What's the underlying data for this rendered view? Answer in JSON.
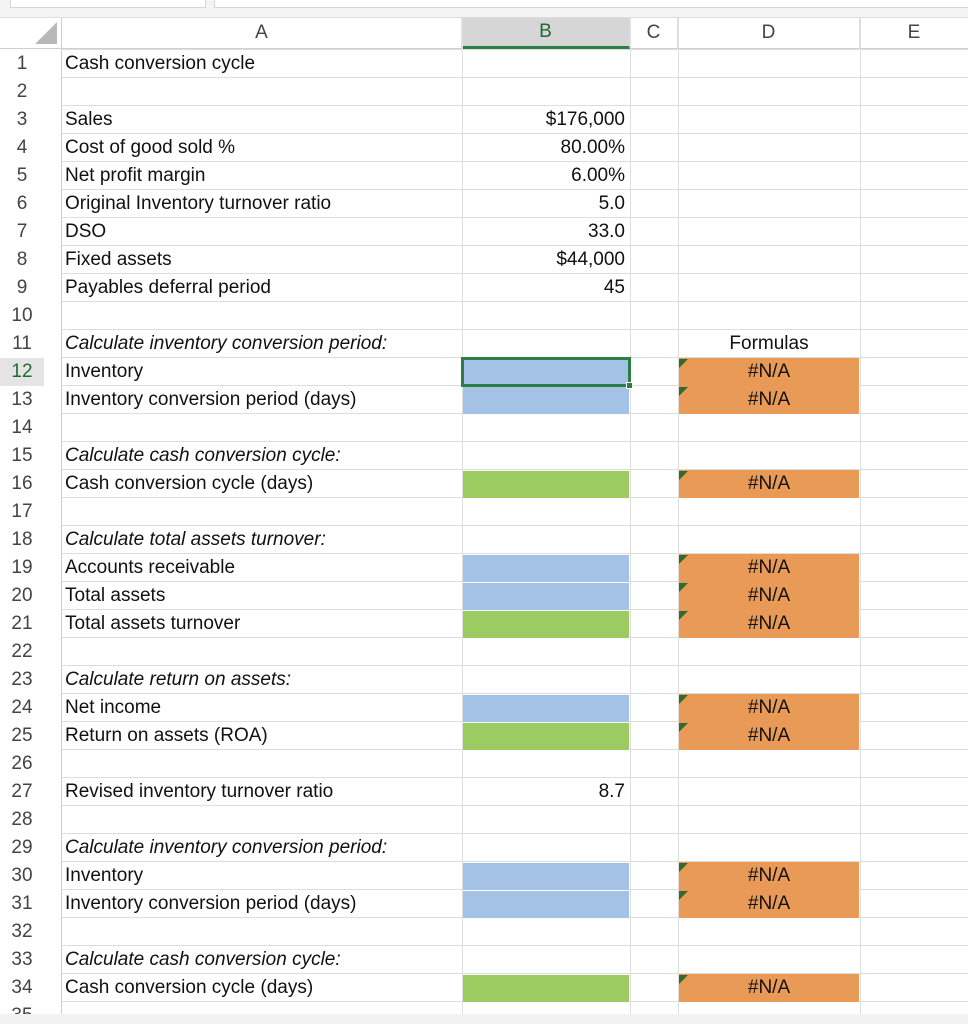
{
  "columns": [
    "A",
    "B",
    "C",
    "D",
    "E"
  ],
  "rows": [
    "1",
    "2",
    "3",
    "4",
    "5",
    "6",
    "7",
    "8",
    "9",
    "10",
    "11",
    "12",
    "13",
    "14",
    "15",
    "16",
    "17",
    "18",
    "19",
    "20",
    "21",
    "22",
    "23",
    "24",
    "25",
    "26",
    "27",
    "28",
    "29",
    "30",
    "31",
    "32",
    "33",
    "34",
    "35"
  ],
  "title": "Cash conversion cycle",
  "inputs": [
    {
      "label": "Sales",
      "value": "$176,000"
    },
    {
      "label": "Cost of good sold %",
      "value": "80.00%"
    },
    {
      "label": "Net profit margin",
      "value": "6.00%"
    },
    {
      "label": "Original Inventory turnover ratio",
      "value": "5.0"
    },
    {
      "label": "DSO",
      "value": "33.0"
    },
    {
      "label": "Fixed assets",
      "value": "$44,000"
    },
    {
      "label": "Payables deferral period",
      "value": "45"
    }
  ],
  "sections": {
    "inv1": "Calculate inventory conversion period:",
    "ccc1": "Calculate cash conversion cycle:",
    "tat": "Calculate total assets turnover:",
    "roa": "Calculate return on assets:",
    "inv2": "Calculate inventory conversion period:",
    "ccc2": "Calculate cash conversion cycle:"
  },
  "labels": {
    "inventory1": "Inventory",
    "icp1": "Inventory conversion period (days)",
    "ccc1": "Cash conversion cycle (days)",
    "ar": "Accounts receivable",
    "total_assets": "Total assets",
    "tat": "Total assets turnover",
    "net_income": "Net income",
    "roa": "Return on assets (ROA)",
    "revised": "Revised inventory turnover ratio",
    "inventory2": "Inventory",
    "icp2": "Inventory conversion period (days)",
    "ccc2": "Cash conversion cycle (days)"
  },
  "revised_value": "8.7",
  "formulas_header": "Formulas",
  "na": "#N/A",
  "colors": {
    "input_blue": "#a4c2e5",
    "result_green": "#9ccb61",
    "formula_orange": "#ea9a57",
    "selection": "#2e7d45"
  }
}
